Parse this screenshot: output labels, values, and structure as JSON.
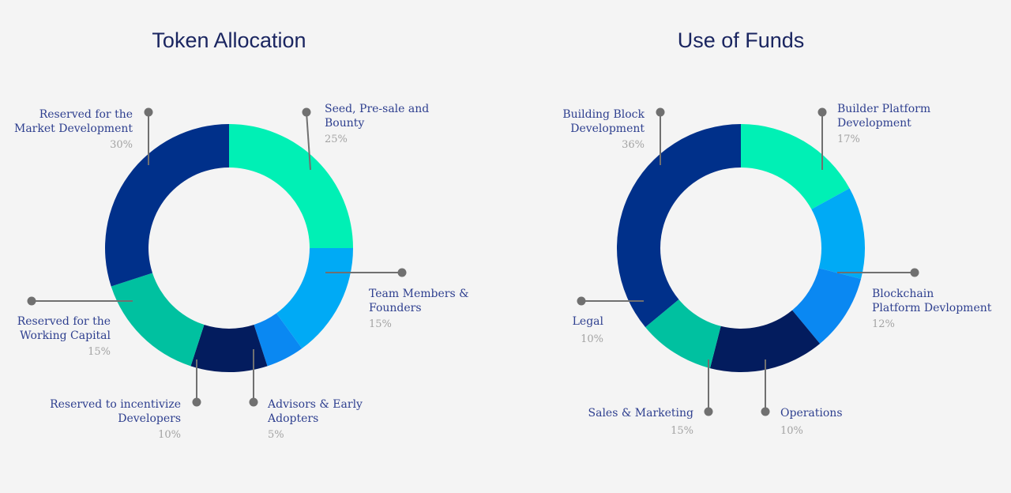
{
  "chart_data": [
    {
      "type": "pie",
      "title": "Token Allocation",
      "slices": [
        {
          "label_lines": [
            "Seed, Pre-sale and",
            "Bounty"
          ],
          "percent_text": "25%",
          "value": 25,
          "color": "#00f0b5"
        },
        {
          "label_lines": [
            "Team Members &",
            "Founders"
          ],
          "percent_text": "15%",
          "value": 15,
          "color": "#00aaf5"
        },
        {
          "label_lines": [
            "Advisors & Early",
            "Adopters"
          ],
          "percent_text": "5%",
          "value": 5,
          "color": "#0a88f2"
        },
        {
          "label_lines": [
            "Reserved to incentivize",
            "Developers"
          ],
          "percent_text": "10%",
          "value": 10,
          "color": "#031c5e"
        },
        {
          "label_lines": [
            "Reserved for the",
            "Working Capital"
          ],
          "percent_text": "15%",
          "value": 15,
          "color": "#00c1a0"
        },
        {
          "label_lines": [
            "Reserved for the",
            "Market Development"
          ],
          "percent_text": "30%",
          "value": 30,
          "color": "#00308a"
        }
      ]
    },
    {
      "type": "pie",
      "title": "Use of Funds",
      "slices": [
        {
          "label_lines": [
            "Builder Platform",
            "Development"
          ],
          "percent_text": "17%",
          "value": 17,
          "color": "#00f0b5"
        },
        {
          "label_lines": [
            "Blockchain",
            "Platform Devlopment"
          ],
          "percent_text": "12%",
          "value": 12,
          "color": "#00aaf5"
        },
        {
          "label_lines": [
            "Operations"
          ],
          "percent_text": "10%",
          "value": 10,
          "color": "#0a88f2"
        },
        {
          "label_lines": [
            "Sales & Marketing"
          ],
          "percent_text": "15%",
          "value": 15,
          "color": "#031c5e"
        },
        {
          "label_lines": [
            "Legal"
          ],
          "percent_text": "10%",
          "value": 10,
          "color": "#00c1a0"
        },
        {
          "label_lines": [
            "Building Block",
            "Development"
          ],
          "percent_text": "36%",
          "value": 36,
          "color": "#00308a"
        }
      ]
    }
  ]
}
